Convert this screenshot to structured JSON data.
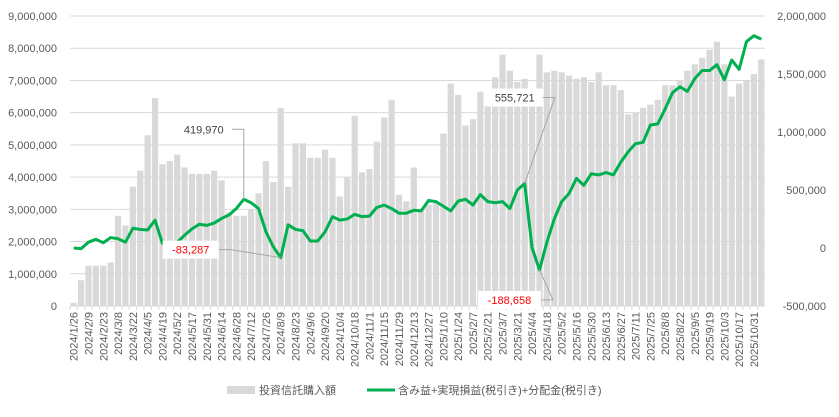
{
  "chart_data": {
    "type": "bar+line",
    "title": "",
    "colors": {
      "bars": "#d9d9d9",
      "line": "#00b050",
      "negative_label": "#ff0000",
      "positive_label": "#404040",
      "grid": "#d9d9d9"
    },
    "grid": true,
    "legend_position": "bottom",
    "y_left": {
      "min": 0,
      "max": 9000000,
      "step": 1000000,
      "tick_labels": [
        "0",
        "1,000,000",
        "2,000,000",
        "3,000,000",
        "4,000,000",
        "5,000,000",
        "6,000,000",
        "7,000,000",
        "8,000,000",
        "9,000,000"
      ]
    },
    "y_right": {
      "min": -500000,
      "max": 2000000,
      "step": 500000,
      "tick_labels": [
        "-500,000",
        "0",
        "500,000",
        "1,000,000",
        "1,500,000",
        "2,000,000"
      ]
    },
    "categories": [
      "2024/1/26",
      "2024/2/2",
      "2024/2/9",
      "2024/2/16",
      "2024/2/23",
      "2024/3/1",
      "2024/3/8",
      "2024/3/15",
      "2024/3/22",
      "2024/3/29",
      "2024/4/5",
      "2024/4/12",
      "2024/4/19",
      "2024/4/26",
      "2024/5/2",
      "2024/5/10",
      "2024/5/17",
      "2024/5/24",
      "2024/5/31",
      "2024/6/7",
      "2024/6/14",
      "2024/6/21",
      "2024/6/28",
      "2024/7/5",
      "2024/7/12",
      "2024/7/19",
      "2024/7/26",
      "2024/8/2",
      "2024/8/9",
      "2024/8/16",
      "2024/8/23",
      "2024/8/30",
      "2024/9/6",
      "2024/9/13",
      "2024/9/20",
      "2024/9/27",
      "2024/10/4",
      "2024/10/11",
      "2024/10/18",
      "2024/10/25",
      "2024/11/1",
      "2024/11/8",
      "2024/11/15",
      "2024/11/22",
      "2024/11/29",
      "2024/12/6",
      "2024/12/13",
      "2024/12/20",
      "2024/12/27",
      "2025/1/3",
      "2025/1/10",
      "2025/1/17",
      "2025/1/24",
      "2025/1/31",
      "2025/2/7",
      "2025/2/14",
      "2025/2/21",
      "2025/2/28",
      "2025/3/7",
      "2025/3/14",
      "2025/3/21",
      "2025/3/28",
      "2025/4/4",
      "2025/4/11",
      "2025/4/18",
      "2025/4/25",
      "2025/5/2",
      "2025/5/9",
      "2025/5/16",
      "2025/5/23",
      "2025/5/30",
      "2025/6/6",
      "2025/6/13",
      "2025/6/20",
      "2025/6/27",
      "2025/7/4",
      "2025/7/11",
      "2025/7/18",
      "2025/7/25",
      "2025/8/1",
      "2025/8/8",
      "2025/8/15",
      "2025/8/22",
      "2025/8/29",
      "2025/9/5",
      "2025/9/12",
      "2025/9/19",
      "2025/9/26",
      "2025/10/3",
      "2025/10/10",
      "2025/10/17",
      "2025/10/24",
      "2025/10/31",
      "2025/11/7"
    ],
    "x_tick_labels_shown_every": 2,
    "series": [
      {
        "name": "投資信託購入額",
        "type": "bar",
        "axis": "left",
        "values": [
          100000,
          800000,
          1250000,
          1250000,
          1250000,
          1350000,
          2800000,
          2500000,
          3700000,
          4200000,
          5300000,
          6450000,
          4400000,
          4500000,
          4700000,
          4300000,
          4100000,
          4100000,
          4100000,
          4200000,
          3900000,
          2900000,
          2800000,
          2800000,
          3000000,
          3500000,
          4500000,
          3850000,
          6150000,
          3700000,
          5050000,
          5050000,
          4600000,
          4600000,
          4850000,
          4600000,
          3400000,
          4000000,
          5900000,
          4150000,
          4250000,
          5100000,
          5850000,
          6400000,
          3450000,
          3250000,
          4300000,
          3000000,
          3150000,
          3200000,
          5350000,
          6900000,
          6550000,
          5600000,
          5800000,
          6650000,
          6200000,
          7100000,
          7800000,
          7300000,
          6950000,
          7050000,
          6450000,
          7800000,
          7250000,
          7300000,
          7250000,
          7150000,
          7050000,
          7100000,
          6950000,
          7250000,
          6850000,
          6850000,
          6700000,
          5950000,
          6000000,
          6150000,
          6250000,
          6400000,
          6850000,
          6850000,
          7000000,
          7300000,
          7500000,
          7700000,
          7950000,
          8200000,
          7500000,
          6500000,
          6900000,
          7000000,
          7200000,
          7650000
        ]
      },
      {
        "name": "含み益+実現損益(税引き)+分配金(税引き)",
        "type": "line",
        "axis": "right",
        "values": [
          0,
          -5000,
          50000,
          75000,
          45000,
          90000,
          80000,
          50000,
          170000,
          160000,
          155000,
          240000,
          40000,
          20000,
          50000,
          110000,
          165000,
          205000,
          195000,
          215000,
          255000,
          285000,
          340000,
          419970,
          390000,
          340000,
          140000,
          10000,
          -83287,
          200000,
          160000,
          150000,
          60000,
          60000,
          140000,
          270000,
          240000,
          250000,
          290000,
          270000,
          275000,
          350000,
          370000,
          340000,
          300000,
          300000,
          325000,
          320000,
          410000,
          400000,
          360000,
          320000,
          405000,
          420000,
          370000,
          460000,
          400000,
          390000,
          400000,
          340000,
          500000,
          555721,
          0,
          -188658,
          50000,
          250000,
          400000,
          470000,
          600000,
          540000,
          640000,
          630000,
          650000,
          630000,
          740000,
          830000,
          900000,
          910000,
          1060000,
          1070000,
          1200000,
          1340000,
          1390000,
          1350000,
          1460000,
          1530000,
          1530000,
          1580000,
          1450000,
          1620000,
          1540000,
          1780000,
          1830000,
          1800000
        ]
      }
    ],
    "annotations": [
      {
        "category": "2024/7/5",
        "text": "419,970",
        "negative": false
      },
      {
        "category": "2024/8/9",
        "text": "-83,287",
        "negative": true
      },
      {
        "category": "2025/3/28",
        "text": "555,721",
        "negative": false
      },
      {
        "category": "2025/4/11",
        "text": "-188,658",
        "negative": true
      }
    ]
  }
}
